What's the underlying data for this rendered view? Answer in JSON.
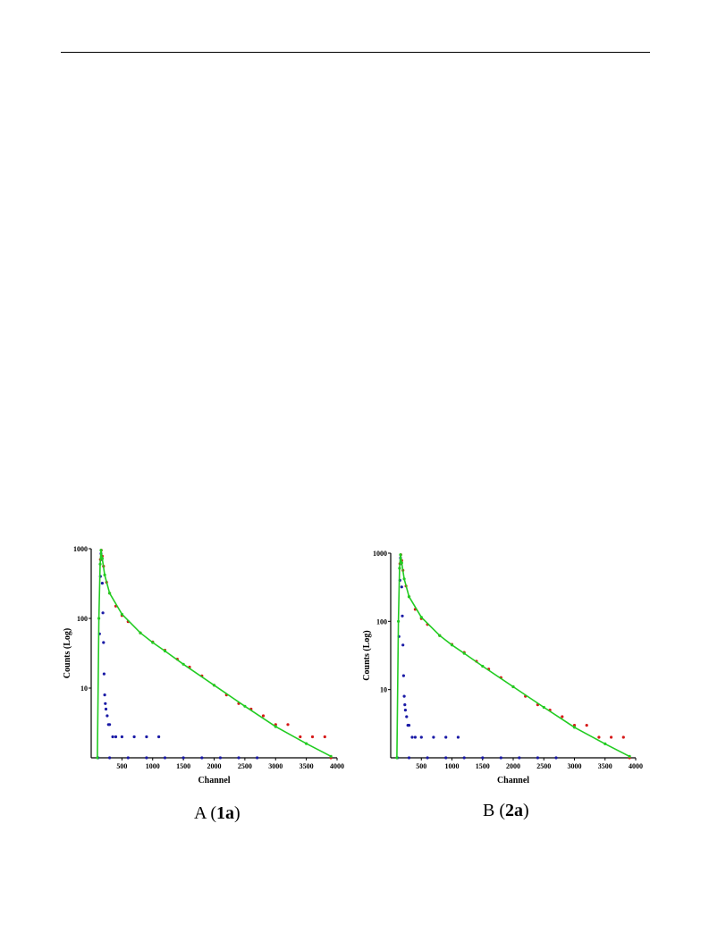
{
  "chart_data": [
    {
      "type": "scatter",
      "caption": {
        "prefix": "A (",
        "label": "1a",
        "suffix": ")"
      },
      "xlabel": "Channel",
      "ylabel": "Counts (Log)",
      "xlim": [
        0,
        4000
      ],
      "ylim": [
        1,
        1000
      ],
      "yscale": "log",
      "x_ticks": [
        500,
        1000,
        1500,
        2000,
        2500,
        3000,
        3500,
        4000
      ],
      "y_ticks": [
        {
          "value": 10,
          "label": "10"
        },
        {
          "value": 100,
          "label": "100"
        },
        {
          "value": 1000,
          "label": "1000"
        }
      ],
      "series": [
        {
          "color": "#1a1aa6",
          "points": [
            [
              110,
              1
            ],
            [
              135,
              60
            ],
            [
              150,
              400
            ],
            [
              160,
              850
            ],
            [
              170,
              700
            ],
            [
              180,
              320
            ],
            [
              190,
              120
            ],
            [
              200,
              45
            ],
            [
              210,
              16
            ],
            [
              220,
              8
            ],
            [
              230,
              6
            ],
            [
              240,
              5
            ],
            [
              260,
              4
            ],
            [
              280,
              3
            ],
            [
              300,
              3
            ],
            [
              350,
              2
            ],
            [
              400,
              2
            ],
            [
              500,
              2
            ],
            [
              700,
              2
            ],
            [
              900,
              2
            ],
            [
              1100,
              2
            ],
            [
              300,
              1
            ],
            [
              600,
              1
            ],
            [
              900,
              1
            ],
            [
              1200,
              1
            ],
            [
              1500,
              1
            ],
            [
              1800,
              1
            ],
            [
              2100,
              1
            ],
            [
              2400,
              1
            ],
            [
              2700,
              1
            ]
          ]
        },
        {
          "color": "#d61a1a",
          "points": [
            [
              150,
              700
            ],
            [
              165,
              950
            ],
            [
              180,
              780
            ],
            [
              200,
              560
            ],
            [
              250,
              330
            ],
            [
              300,
              230
            ],
            [
              400,
              150
            ],
            [
              500,
              110
            ],
            [
              600,
              90
            ],
            [
              800,
              62
            ],
            [
              1000,
              46
            ],
            [
              1200,
              35
            ],
            [
              1400,
              26
            ],
            [
              1600,
              20
            ],
            [
              1800,
              15
            ],
            [
              2000,
              11
            ],
            [
              2200,
              8
            ],
            [
              2400,
              6
            ],
            [
              2600,
              5
            ],
            [
              2800,
              4
            ],
            [
              3000,
              3
            ],
            [
              3200,
              3
            ],
            [
              3400,
              2
            ],
            [
              3600,
              2
            ],
            [
              3800,
              2
            ],
            [
              3900,
              1
            ]
          ]
        },
        {
          "color": "#22cc22",
          "points": [
            [
              100,
              1
            ],
            [
              125,
              100
            ],
            [
              145,
              600
            ],
            [
              160,
              950
            ],
            [
              180,
              720
            ],
            [
              220,
              420
            ],
            [
              300,
              230
            ],
            [
              500,
              115
            ],
            [
              800,
              62
            ],
            [
              1000,
              45
            ],
            [
              1200,
              34
            ],
            [
              1500,
              22
            ],
            [
              2000,
              11
            ],
            [
              2500,
              5.5
            ],
            [
              3000,
              2.8
            ],
            [
              3500,
              1.6
            ],
            [
              3900,
              1.05
            ]
          ]
        }
      ]
    },
    {
      "type": "scatter",
      "caption": {
        "prefix": "B (",
        "label": "2a",
        "suffix": ")"
      },
      "xlabel": "Channel",
      "ylabel": "Counts (Log)",
      "xlim": [
        0,
        4000
      ],
      "ylim": [
        1,
        1000
      ],
      "yscale": "log",
      "x_ticks": [
        500,
        1000,
        1500,
        2000,
        2500,
        3000,
        3500,
        4000
      ],
      "y_ticks": [
        {
          "value": 10,
          "label": "10"
        },
        {
          "value": 100,
          "label": "100"
        },
        {
          "value": 1000,
          "label": "1000"
        }
      ],
      "series": [
        {
          "color": "#1a1aa6",
          "points": [
            [
              110,
              1
            ],
            [
              135,
              60
            ],
            [
              150,
              400
            ],
            [
              160,
              850
            ],
            [
              170,
              700
            ],
            [
              180,
              320
            ],
            [
              190,
              120
            ],
            [
              200,
              45
            ],
            [
              210,
              16
            ],
            [
              220,
              8
            ],
            [
              230,
              6
            ],
            [
              240,
              5
            ],
            [
              260,
              4
            ],
            [
              280,
              3
            ],
            [
              300,
              3
            ],
            [
              350,
              2
            ],
            [
              400,
              2
            ],
            [
              500,
              2
            ],
            [
              700,
              2
            ],
            [
              900,
              2
            ],
            [
              1100,
              2
            ],
            [
              300,
              1
            ],
            [
              600,
              1
            ],
            [
              900,
              1
            ],
            [
              1200,
              1
            ],
            [
              1500,
              1
            ],
            [
              1800,
              1
            ],
            [
              2100,
              1
            ],
            [
              2400,
              1
            ],
            [
              2700,
              1
            ]
          ]
        },
        {
          "color": "#d61a1a",
          "points": [
            [
              150,
              700
            ],
            [
              165,
              950
            ],
            [
              180,
              780
            ],
            [
              200,
              560
            ],
            [
              250,
              330
            ],
            [
              300,
              230
            ],
            [
              400,
              150
            ],
            [
              500,
              110
            ],
            [
              600,
              90
            ],
            [
              800,
              62
            ],
            [
              1000,
              46
            ],
            [
              1200,
              35
            ],
            [
              1400,
              26
            ],
            [
              1600,
              20
            ],
            [
              1800,
              15
            ],
            [
              2000,
              11
            ],
            [
              2200,
              8
            ],
            [
              2400,
              6
            ],
            [
              2600,
              5
            ],
            [
              2800,
              4
            ],
            [
              3000,
              3
            ],
            [
              3200,
              3
            ],
            [
              3400,
              2
            ],
            [
              3600,
              2
            ],
            [
              3800,
              2
            ],
            [
              3900,
              1
            ]
          ]
        },
        {
          "color": "#22cc22",
          "points": [
            [
              100,
              1
            ],
            [
              125,
              100
            ],
            [
              145,
              600
            ],
            [
              160,
              950
            ],
            [
              180,
              720
            ],
            [
              220,
              420
            ],
            [
              300,
              230
            ],
            [
              500,
              115
            ],
            [
              800,
              62
            ],
            [
              1000,
              45
            ],
            [
              1200,
              34
            ],
            [
              1500,
              22
            ],
            [
              2000,
              11
            ],
            [
              2500,
              5.5
            ],
            [
              3000,
              2.8
            ],
            [
              3500,
              1.6
            ],
            [
              3900,
              1.05
            ]
          ]
        }
      ]
    }
  ]
}
